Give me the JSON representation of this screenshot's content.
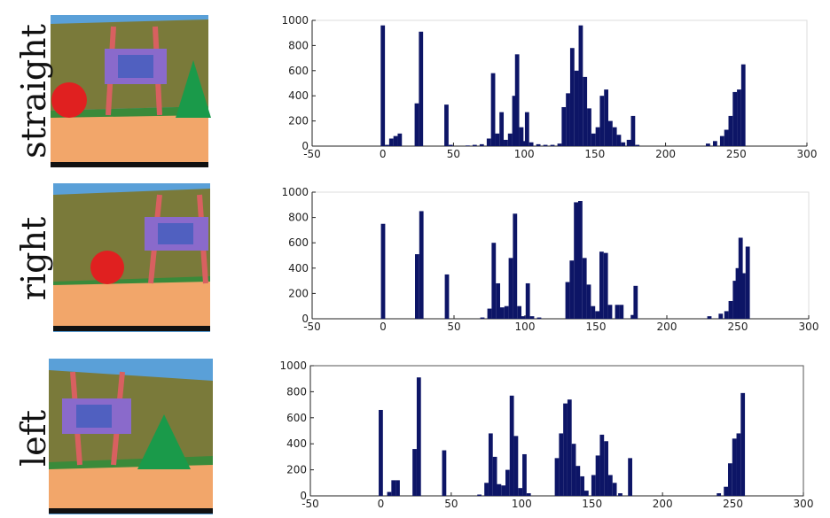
{
  "chart_data": [
    {
      "type": "bar",
      "title": "straight",
      "color": "#0d1566",
      "frame": false,
      "x": [
        0,
        3,
        6,
        9,
        12,
        24,
        27,
        45,
        48,
        60,
        65,
        70,
        75,
        78,
        81,
        84,
        87,
        90,
        93,
        95,
        98,
        100,
        102,
        105,
        110,
        115,
        120,
        125,
        128,
        131,
        134,
        137,
        140,
        143,
        146,
        149,
        152,
        155,
        158,
        161,
        164,
        167,
        170,
        174,
        177,
        180,
        230,
        235,
        240,
        243,
        246,
        249,
        252,
        255
      ],
      "values": [
        960,
        10,
        60,
        80,
        100,
        340,
        910,
        330,
        10,
        5,
        10,
        15,
        60,
        580,
        100,
        270,
        50,
        100,
        400,
        730,
        150,
        40,
        270,
        30,
        15,
        10,
        10,
        20,
        310,
        420,
        780,
        600,
        960,
        550,
        300,
        100,
        150,
        400,
        450,
        200,
        150,
        90,
        30,
        50,
        240,
        10,
        20,
        40,
        80,
        130,
        240,
        430,
        450,
        650
      ],
      "xlim": [
        -50,
        300
      ],
      "xticks": [
        -50,
        0,
        50,
        100,
        150,
        200,
        250,
        300
      ],
      "ylim": [
        0,
        1000
      ],
      "yticks": [
        0,
        200,
        400,
        600,
        800,
        1000
      ]
    },
    {
      "type": "bar",
      "title": "right",
      "color": "#0d1566",
      "frame": false,
      "x": [
        0,
        24,
        27,
        45,
        70,
        75,
        78,
        81,
        84,
        87,
        90,
        93,
        96,
        99,
        102,
        105,
        110,
        130,
        133,
        136,
        139,
        142,
        145,
        148,
        151,
        154,
        157,
        160,
        165,
        168,
        176,
        178,
        230,
        238,
        242,
        245,
        248,
        250,
        252,
        254,
        257
      ],
      "values": [
        750,
        510,
        850,
        350,
        10,
        80,
        600,
        280,
        90,
        100,
        480,
        830,
        100,
        20,
        280,
        20,
        10,
        290,
        460,
        920,
        930,
        480,
        270,
        100,
        60,
        530,
        520,
        110,
        110,
        110,
        30,
        260,
        20,
        40,
        60,
        140,
        300,
        400,
        640,
        360,
        570
      ],
      "xlim": [
        -50,
        300
      ],
      "xticks": [
        -50,
        0,
        50,
        100,
        150,
        200,
        250,
        300
      ],
      "ylim": [
        0,
        1000
      ],
      "yticks": [
        0,
        200,
        400,
        600,
        800,
        1000
      ]
    },
    {
      "type": "bar",
      "title": "left",
      "color": "#0d1566",
      "frame": true,
      "x": [
        0,
        6,
        9,
        12,
        24,
        27,
        45,
        70,
        75,
        78,
        81,
        84,
        87,
        90,
        93,
        96,
        99,
        102,
        105,
        125,
        128,
        131,
        134,
        137,
        140,
        143,
        146,
        151,
        154,
        157,
        160,
        163,
        166,
        170,
        177,
        240,
        245,
        248,
        251,
        254,
        257
      ],
      "values": [
        660,
        30,
        120,
        120,
        360,
        910,
        350,
        10,
        100,
        480,
        300,
        90,
        80,
        200,
        770,
        460,
        60,
        320,
        20,
        290,
        480,
        710,
        740,
        400,
        230,
        150,
        40,
        160,
        310,
        470,
        420,
        160,
        100,
        20,
        290,
        20,
        70,
        250,
        440,
        480,
        790
      ],
      "xlim": [
        -50,
        300
      ],
      "xticks": [
        -50,
        0,
        50,
        100,
        150,
        200,
        250,
        300
      ],
      "ylim": [
        0,
        1000
      ],
      "yticks": [
        0,
        200,
        400,
        600,
        800,
        1000
      ]
    }
  ]
}
